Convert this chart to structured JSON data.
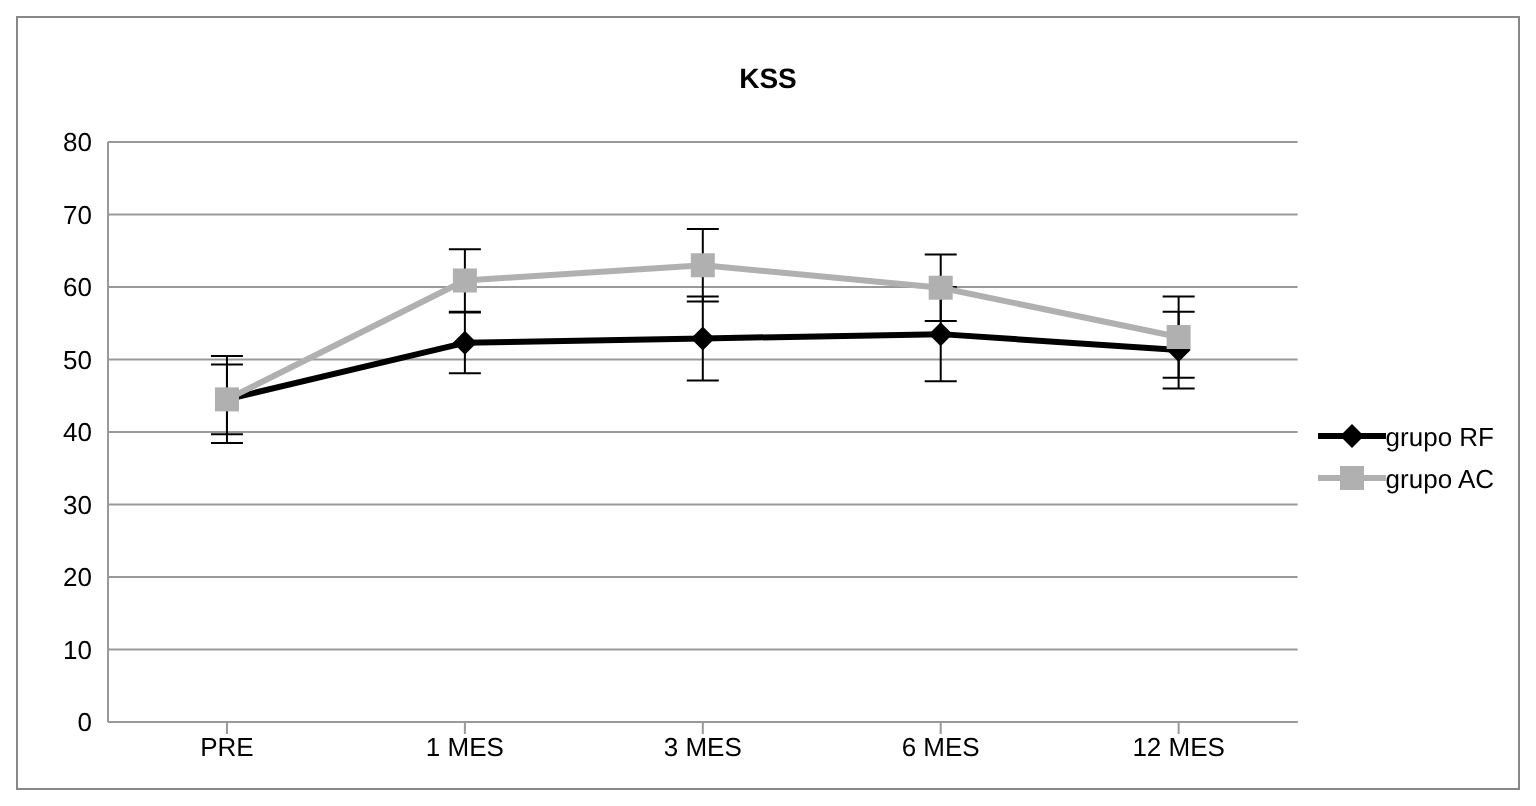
{
  "chart_data": {
    "type": "line",
    "title": "KSS",
    "categories": [
      "PRE",
      "1 MES",
      "3 MES",
      "6 MES",
      "12 MES"
    ],
    "series": [
      {
        "name": "grupo RF",
        "color": "#000000",
        "marker": "diamond",
        "values": [
          44.5,
          52.3,
          52.9,
          53.5,
          51.3
        ],
        "errors": [
          4.8,
          4.2,
          5.8,
          6.5,
          5.3
        ]
      },
      {
        "name": "grupo AC",
        "color": "#b0b0b0",
        "marker": "square",
        "values": [
          44.5,
          60.9,
          63,
          59.9,
          53.1
        ],
        "errors": [
          6,
          4.3,
          5,
          4.6,
          5.6
        ]
      }
    ],
    "ylim": [
      0,
      80
    ],
    "yticks": [
      0,
      10,
      20,
      30,
      40,
      50,
      60,
      70,
      80
    ],
    "grid": "y",
    "legend": "right"
  }
}
